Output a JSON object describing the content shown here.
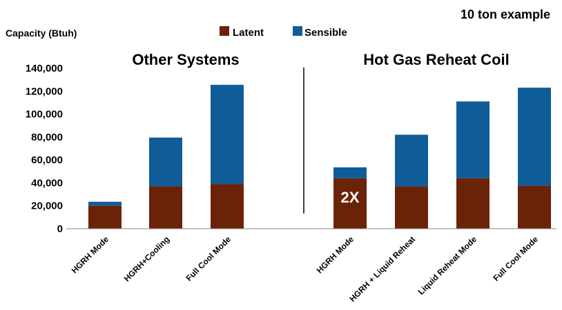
{
  "chart_data": {
    "type": "bar",
    "stacked": true,
    "subtitle": "10 ton example",
    "ylabel": "Capacity (Btuh)",
    "ylim": [
      0,
      140000
    ],
    "yticks": [
      "0",
      "20,000",
      "40,000",
      "60,000",
      "80,000",
      "100,000",
      "120,000",
      "140,000"
    ],
    "legend": {
      "placement": "top-center",
      "entries": [
        "Latent",
        "Sensible"
      ]
    },
    "colors": {
      "Latent": "#6b2308",
      "Sensible": "#0f5c99"
    },
    "groups": [
      {
        "title": "Other Systems",
        "categories": [
          "HGRH Mode",
          "HGRH+Cooling",
          "Full Cool Mode"
        ],
        "series": [
          {
            "name": "Latent",
            "values": [
              20000,
              37000,
              39000
            ]
          },
          {
            "name": "Sensible",
            "values": [
              3500,
              42500,
              86500
            ]
          }
        ]
      },
      {
        "title": "Hot Gas Reheat Coil",
        "categories": [
          "HGRH Mode",
          "HGRH + Liquid Reheat",
          "Liquid Reheat Mode",
          "Full Cool Mode"
        ],
        "series": [
          {
            "name": "Latent",
            "values": [
              44000,
              37000,
              44000,
              37500
            ]
          },
          {
            "name": "Sensible",
            "values": [
              9500,
              45000,
              67000,
              85500
            ]
          }
        ]
      }
    ],
    "annotations": [
      {
        "text": "2X",
        "group": 1,
        "category": 0
      }
    ]
  }
}
